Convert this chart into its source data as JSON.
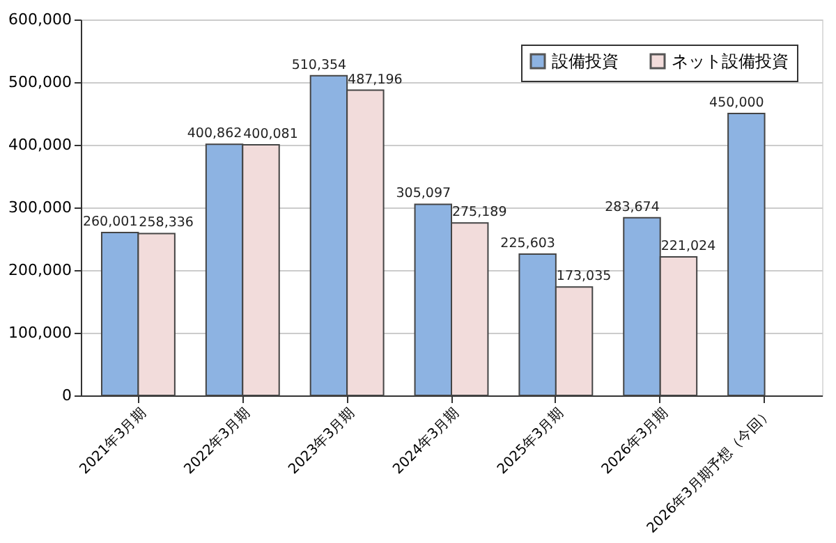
{
  "chart_data": {
    "type": "bar",
    "categories": [
      "2021年3月期",
      "2022年3月期",
      "2023年3月期",
      "2024年3月期",
      "2025年3月期",
      "2026年3月期",
      "2026年3月期予想（今回）"
    ],
    "series": [
      {
        "name": "設備投資",
        "color": "#8db3e2",
        "values": [
          260001,
          400862,
          510354,
          305097,
          225603,
          283674,
          450000
        ],
        "value_labels": [
          "260,001",
          "400,862",
          "510,354",
          "305,097",
          "225,603",
          "283,674",
          "450,000"
        ]
      },
      {
        "name": "ネット設備投資",
        "color": "#f2dcdb",
        "values": [
          258336,
          400081,
          487196,
          275189,
          173035,
          221024,
          null
        ],
        "value_labels": [
          "258,336",
          "400,081",
          "487,196",
          "275,189",
          "173,035",
          "221,024",
          null
        ]
      }
    ],
    "ylim": [
      0,
      600000
    ],
    "yticks": [
      0,
      {
        "value": 100000,
        "label": "100,000"
      },
      {
        "value": 200000,
        "label": "200,000"
      },
      {
        "value": 300000,
        "label": "300,000"
      },
      {
        "value": 400000,
        "label": "400,000"
      },
      {
        "value": 500000,
        "label": "500,000"
      },
      {
        "value": 600000,
        "label": "600,000"
      }
    ],
    "grid": "y",
    "legend": "top right"
  }
}
